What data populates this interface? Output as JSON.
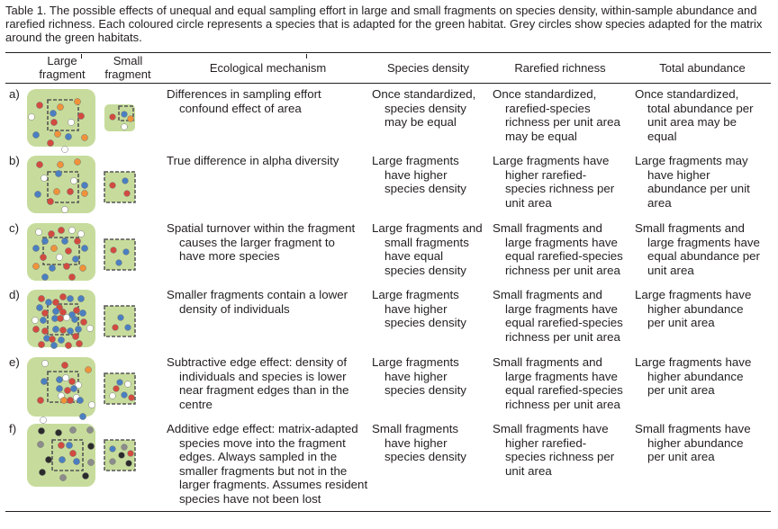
{
  "caption": "Table 1. The possible effects of unequal and equal sampling effort in large and small fragments on species density, within-sample abundance and rarefied richness. Each coloured circle represents a species that is adapted for the green habitat. Grey circles show species adapted for the matrix around the green habitats.",
  "headers": {
    "large": "Large fragment",
    "small": "Small fragment",
    "mechanism": "Ecological mechanism",
    "density": "Species density",
    "richness": "Rarefied richness",
    "abundance": "Total abundance"
  },
  "colors": {
    "fragment": "#c7dc9c",
    "red": "#d34a3f",
    "blue": "#4a7fc1",
    "orange": "#f0923a",
    "white": "#ffffff",
    "grey": "#8c8c8c",
    "black": "#2b2b2b"
  },
  "rows": [
    {
      "label": "a)",
      "mechanism": [
        "Differences in sampling effort",
        "confound effect of area"
      ],
      "density": [
        "Once standardized,",
        "species density",
        "may be equal"
      ],
      "richness": [
        "Once standardized,",
        "rarefied-species",
        "richness per unit area",
        "may be equal"
      ],
      "abundance": [
        "Once standardized,",
        "total abundance per",
        "unit area may be",
        "equal"
      ]
    },
    {
      "label": "b)",
      "mechanism": [
        "True difference in alpha diversity"
      ],
      "density": [
        "Large fragments",
        "have higher",
        "species density"
      ],
      "richness": [
        "Large fragments have",
        "higher rarefied-",
        "species richness per",
        "unit area"
      ],
      "abundance": [
        "Large fragments may",
        "have higher",
        "abundance per unit",
        "area"
      ]
    },
    {
      "label": "c)",
      "mechanism": [
        "Spatial turnover within the fragment",
        "causes the larger fragment to",
        "have more species"
      ],
      "density": [
        "Large fragments and",
        "small fragments",
        "have equal",
        "species density"
      ],
      "richness": [
        "Small fragments and",
        "large fragments have",
        "equal rarefied-species",
        "richness per unit area"
      ],
      "abundance": [
        "Small fragments and",
        "large fragments have",
        "equal abundance per",
        "unit area"
      ]
    },
    {
      "label": "d)",
      "mechanism": [
        "Smaller fragments contain a lower",
        "density of individuals"
      ],
      "density": [
        "Large fragments",
        "have higher",
        "species density"
      ],
      "richness": [
        "Small fragments and",
        "large fragments have",
        "equal rarefied-species",
        "richness per unit area"
      ],
      "abundance": [
        "Large fragments have",
        "higher abundance",
        "per unit area"
      ]
    },
    {
      "label": "e)",
      "mechanism": [
        "Subtractive edge effect: density of",
        "individuals and species is lower",
        "near fragment edges than in the",
        "centre"
      ],
      "density": [
        "Large fragments",
        "have higher",
        "species density"
      ],
      "richness": [
        "Small fragments and",
        "large fragments have",
        "equal rarefied-species",
        "richness per unit area"
      ],
      "abundance": [
        "Large fragments have",
        "higher abundance",
        "per unit area"
      ]
    },
    {
      "label": "f)",
      "mechanism": [
        "Additive edge effect: matrix-adapted",
        "species move into the fragment",
        "edges. Always sampled in the",
        "smaller fragments but not in the",
        "larger fragments. Assumes resident",
        "species have not been lost"
      ],
      "density": [
        "Small fragments",
        "have higher",
        "species density"
      ],
      "richness": [
        "Small fragments have",
        "higher rarefied-",
        "species richness per",
        "unit area"
      ],
      "abundance": [
        "Small fragments have",
        "higher abundance",
        "per unit area"
      ]
    }
  ]
}
